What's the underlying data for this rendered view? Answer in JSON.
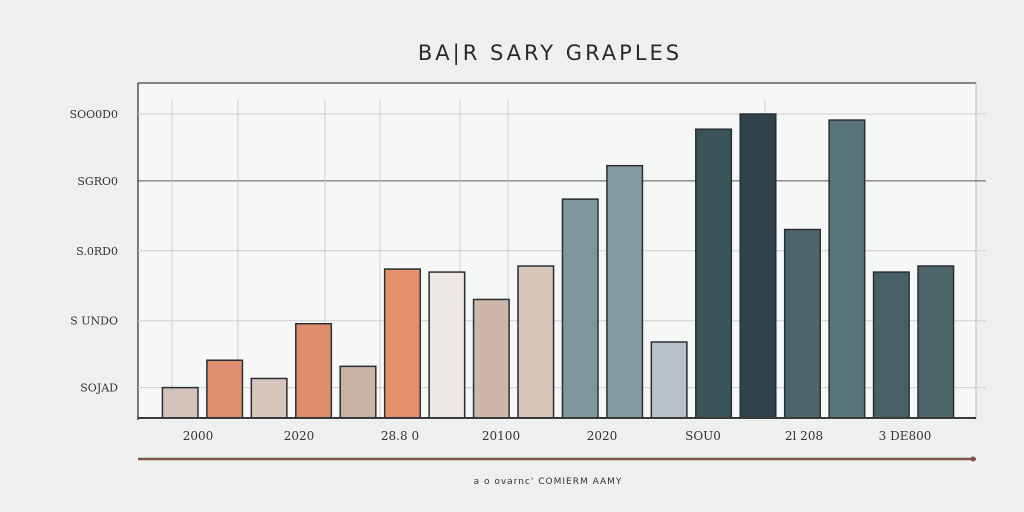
{
  "chart_data": {
    "type": "bar",
    "title": "BA|R SARY GRAPLES",
    "caption": "a o ovarnc' COMIERM  AAMY",
    "ylim": [
      0,
      100
    ],
    "yticks": [
      {
        "label": "SOJAD",
        "value": 10
      },
      {
        "label": "S UNDO",
        "value": 32
      },
      {
        "label": "S.0RD0",
        "value": 55
      },
      {
        "label": "SGRO0",
        "value": 78
      },
      {
        "label": "SOO0D0",
        "value": 100
      }
    ],
    "xticks": [
      "2000",
      "2020",
      "28.8 0",
      "20100",
      "2020",
      "SOU0",
      "2l 208",
      "3 DE800"
    ],
    "grid": true,
    "bars": [
      {
        "value": 10,
        "color": "#d2c2b7"
      },
      {
        "value": 19,
        "color": "#e0906f"
      },
      {
        "value": 13,
        "color": "#d6c6bb"
      },
      {
        "value": 31,
        "color": "#df8e6c"
      },
      {
        "value": 17,
        "color": "#c9b3a4"
      },
      {
        "value": 49,
        "color": "#e4906c"
      },
      {
        "value": 48,
        "color": "#ebe7e3"
      },
      {
        "value": 39,
        "color": "#cdb7a8"
      },
      {
        "value": 50,
        "color": "#d7c5b8"
      },
      {
        "value": 72,
        "color": "#7e979c"
      },
      {
        "value": 83,
        "color": "#849ca1"
      },
      {
        "value": 25,
        "color": "#b8c2c6"
      },
      {
        "value": 95,
        "color": "#3a5459"
      },
      {
        "value": 100,
        "color": "#30434d"
      },
      {
        "value": 62,
        "color": "#4d666b"
      },
      {
        "value": 98,
        "color": "#587478"
      },
      {
        "value": 48,
        "color": "#476065"
      },
      {
        "value": 50,
        "color": "#4b6569"
      }
    ]
  }
}
